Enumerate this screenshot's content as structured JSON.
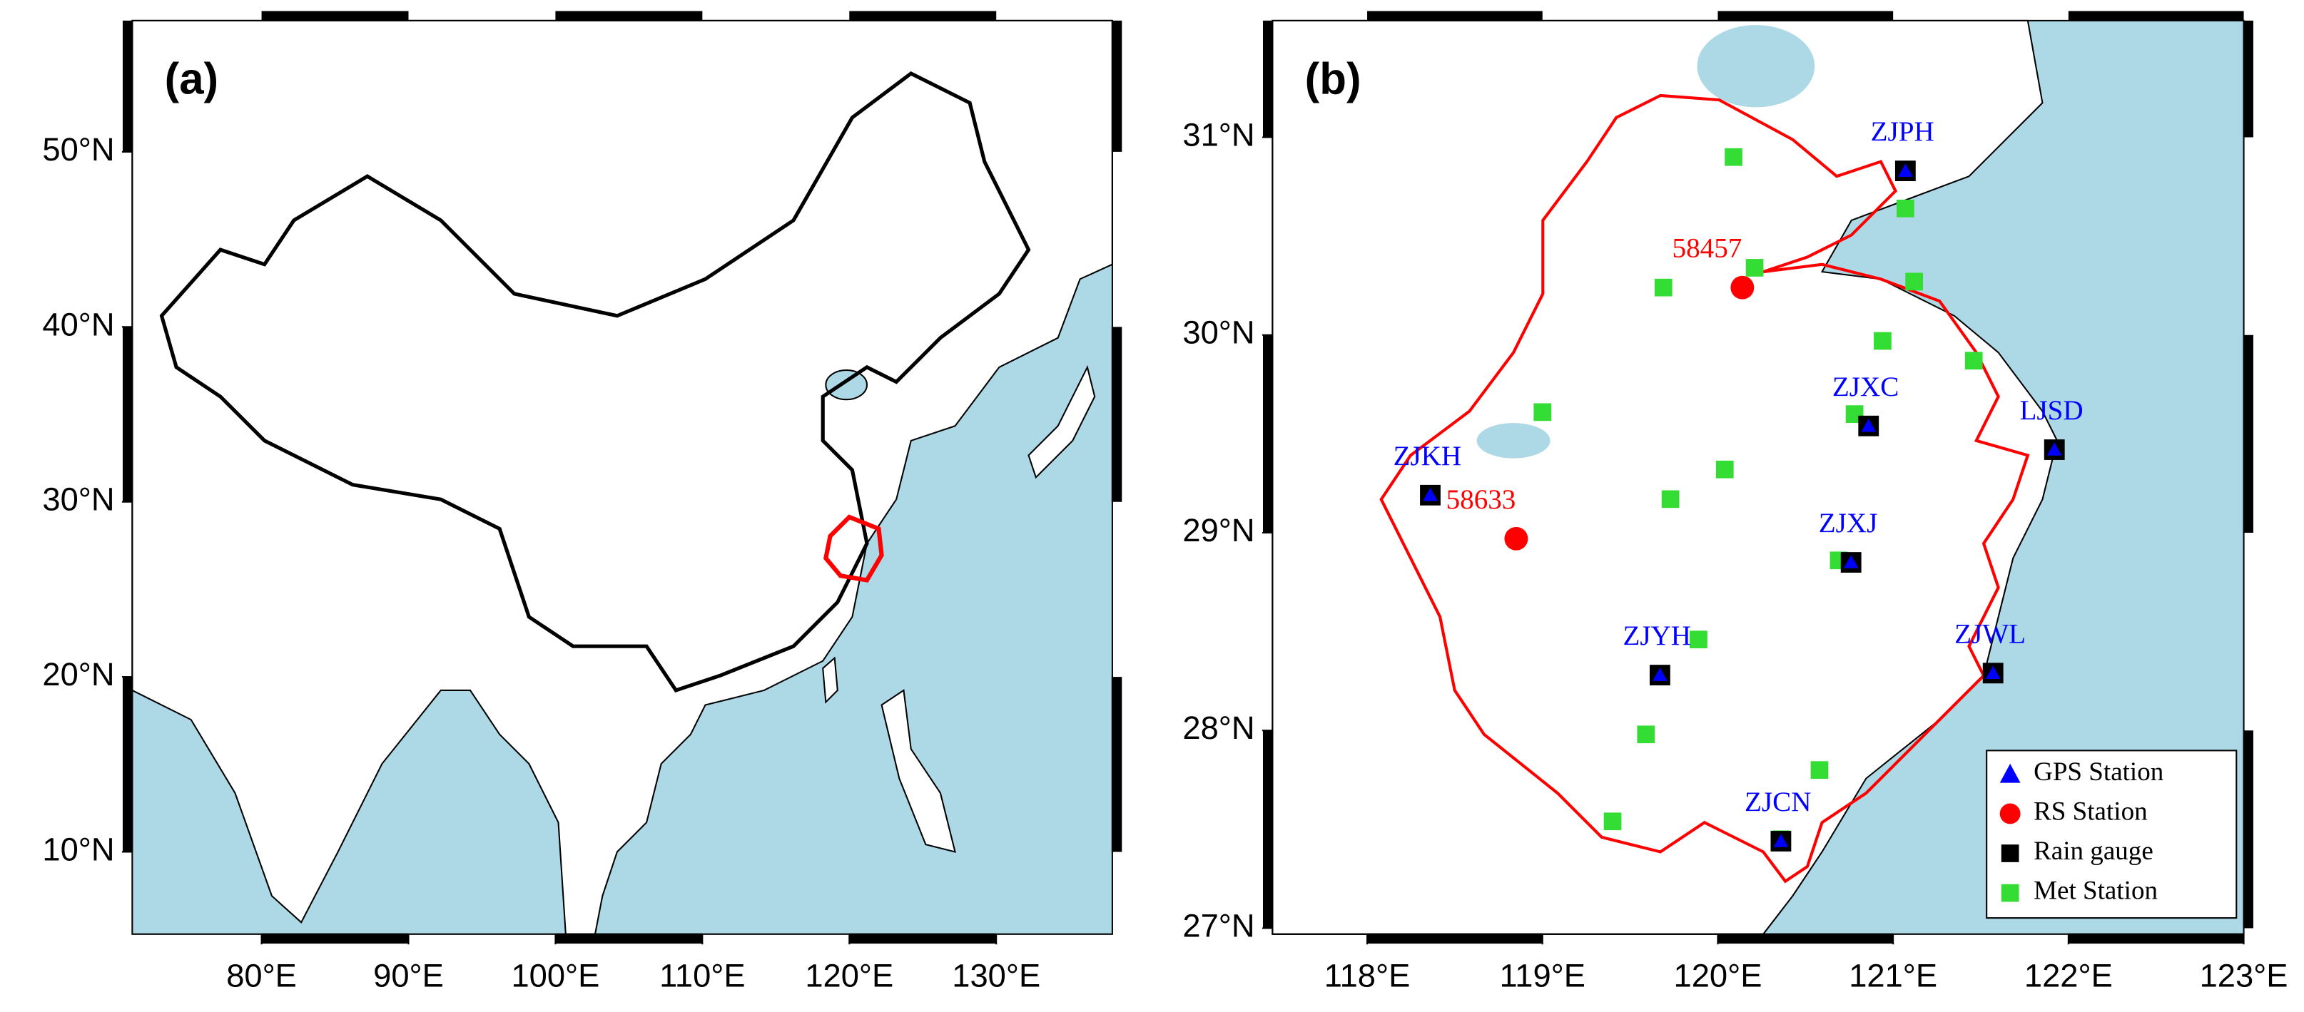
{
  "panels": [
    {
      "label": "(a)",
      "xlim": [
        71.2,
        137.9
      ],
      "ylim": [
        5.3,
        57.5
      ],
      "xticks": [
        {
          "value": 80,
          "label": "80°E"
        },
        {
          "value": 90,
          "label": "90°E"
        },
        {
          "value": 100,
          "label": "100°E"
        },
        {
          "value": 110,
          "label": "110°E"
        },
        {
          "value": 120,
          "label": "120°E"
        },
        {
          "value": 130,
          "label": "130°E"
        }
      ],
      "yticks": [
        {
          "value": 10,
          "label": "10°N"
        },
        {
          "value": 20,
          "label": "20°N"
        },
        {
          "value": 30,
          "label": "30°N"
        },
        {
          "value": 40,
          "label": "40°N"
        },
        {
          "value": 50,
          "label": "50°N"
        }
      ]
    },
    {
      "label": "(b)",
      "xlim": [
        117.46,
        123
      ],
      "ylim": [
        26.97,
        31.59
      ],
      "xticks": [
        {
          "value": 118,
          "label": "118°E"
        },
        {
          "value": 119,
          "label": "119°E"
        },
        {
          "value": 120,
          "label": "120°E"
        },
        {
          "value": 121,
          "label": "121°E"
        },
        {
          "value": 122,
          "label": "122°E"
        },
        {
          "value": 123,
          "label": "123°E"
        }
      ],
      "yticks": [
        {
          "value": 27,
          "label": "27°N"
        },
        {
          "value": 28,
          "label": "28°N"
        },
        {
          "value": 29,
          "label": "29°N"
        },
        {
          "value": 30,
          "label": "30°N"
        },
        {
          "value": 31,
          "label": "31°N"
        }
      ],
      "gps_stations": [
        {
          "name": "ZJPH",
          "lon": 121.07,
          "lat": 30.83
        },
        {
          "name": "ZJXC",
          "lon": 120.86,
          "lat": 29.54
        },
        {
          "name": "LJSD",
          "lon": 121.92,
          "lat": 29.42
        },
        {
          "name": "ZJKH",
          "lon": 118.36,
          "lat": 29.19
        },
        {
          "name": "ZJXJ",
          "lon": 120.76,
          "lat": 28.85
        },
        {
          "name": "ZJYH",
          "lon": 119.67,
          "lat": 28.28
        },
        {
          "name": "ZJWL",
          "lon": 121.57,
          "lat": 28.29
        },
        {
          "name": "ZJCN",
          "lon": 120.36,
          "lat": 27.44
        }
      ],
      "rs_stations": [
        {
          "name": "58457",
          "lon": 120.14,
          "lat": 30.24
        },
        {
          "name": "58633",
          "lon": 118.85,
          "lat": 28.97
        }
      ],
      "met_stations": [
        {
          "lon": 120.09,
          "lat": 30.9
        },
        {
          "lon": 120.21,
          "lat": 30.34
        },
        {
          "lon": 119.69,
          "lat": 30.24
        },
        {
          "lon": 121.07,
          "lat": 30.64
        },
        {
          "lon": 121.12,
          "lat": 30.27
        },
        {
          "lon": 120.94,
          "lat": 29.97
        },
        {
          "lon": 121.46,
          "lat": 29.87
        },
        {
          "lon": 119.0,
          "lat": 29.61
        },
        {
          "lon": 120.04,
          "lat": 29.32
        },
        {
          "lon": 119.73,
          "lat": 29.17
        },
        {
          "lon": 120.78,
          "lat": 29.6
        },
        {
          "lon": 120.69,
          "lat": 28.86
        },
        {
          "lon": 119.89,
          "lat": 28.46
        },
        {
          "lon": 119.59,
          "lat": 27.98
        },
        {
          "lon": 120.58,
          "lat": 27.8
        },
        {
          "lon": 119.4,
          "lat": 27.54
        },
        {
          "lon": 120.36,
          "lat": 27.45
        }
      ],
      "legend": [
        {
          "label": "GPS Station",
          "color": "#0000ff"
        },
        {
          "label": "RS Station",
          "color": "#ff0000"
        },
        {
          "label": "Rain gauge",
          "color": "#000000"
        },
        {
          "label": "Met Station",
          "color": "#33dd33"
        }
      ]
    }
  ]
}
